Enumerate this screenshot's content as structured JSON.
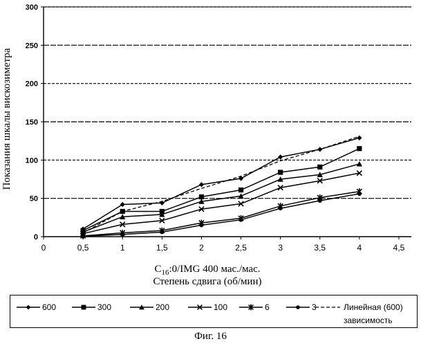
{
  "chart_data": {
    "type": "line",
    "title": "",
    "ylabel": "Показания шкалы вискозиметра",
    "xlabel_line1": "С16:0/IMG 400 мас./мас.",
    "xlabel_line2": "Степень сдвига (об/мин)",
    "xlim": [
      0,
      4.5
    ],
    "ylim": [
      0,
      300
    ],
    "xticks": [
      "0",
      "0,5",
      "1",
      "1,5",
      "2",
      "2,5",
      "3",
      "3,5",
      "4",
      "4,5"
    ],
    "xtick_values": [
      0,
      0.5,
      1,
      1.5,
      2,
      2.5,
      3,
      3.5,
      4,
      4.5
    ],
    "yticks": [
      "0",
      "50",
      "100",
      "150",
      "200",
      "250",
      "300"
    ],
    "ytick_values": [
      0,
      50,
      100,
      150,
      200,
      250,
      300
    ],
    "grid": "horizontal",
    "legend_position": "bottom",
    "x": [
      0.5,
      1,
      1.5,
      2,
      2.5,
      3,
      3.5,
      4
    ],
    "series": [
      {
        "name": "600",
        "marker": "diamond",
        "values": [
          10,
          42,
          44,
          68,
          76,
          104,
          114,
          129
        ]
      },
      {
        "name": "300",
        "marker": "square",
        "values": [
          8,
          33,
          33,
          52,
          61,
          84,
          91,
          115
        ]
      },
      {
        "name": "200",
        "marker": "triangle",
        "values": [
          6,
          26,
          29,
          46,
          53,
          75,
          81,
          95
        ]
      },
      {
        "name": "100",
        "marker": "x",
        "values": [
          4,
          16,
          21,
          36,
          43,
          64,
          73,
          83
        ]
      },
      {
        "name": "6",
        "marker": "asterisk",
        "values": [
          1,
          5,
          8,
          18,
          24,
          40,
          51,
          59
        ]
      },
      {
        "name": "3",
        "marker": "circle",
        "values": [
          0.5,
          3,
          6,
          15,
          22,
          37,
          47,
          56
        ]
      }
    ],
    "trendline": {
      "name": "Линейная (600)",
      "name_line2": "зависимость",
      "style": "dashed",
      "values": [
        5,
        33,
        46,
        63,
        79,
        99,
        114,
        131
      ]
    }
  },
  "caption": "Фиг. 16"
}
